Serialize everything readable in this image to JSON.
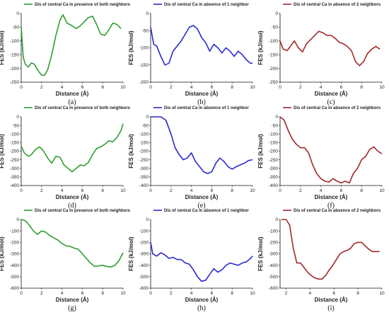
{
  "chart_data": [
    {
      "type": "line",
      "legend": "Dis of central Ca in presence of both neighbors",
      "color": "#2e9e2e",
      "xlabel": "Distance (Å)",
      "ylabel": "FES (kJ/mol)",
      "caption": "(a)",
      "xlim": [
        0,
        10
      ],
      "ylim": [
        -250,
        0
      ],
      "xticks": [
        0,
        2,
        4,
        6,
        8,
        10
      ],
      "yticks": [
        0,
        -50,
        -100,
        -150,
        -200,
        -250
      ],
      "x": [
        0,
        0.2,
        0.4,
        0.7,
        1.0,
        1.3,
        1.6,
        2.0,
        2.3,
        2.6,
        3.0,
        3.4,
        3.8,
        4.1,
        4.5,
        5.0,
        5.4,
        5.8,
        6.2,
        6.6,
        7.0,
        7.4,
        7.8,
        8.2,
        8.6,
        9.0,
        9.4,
        9.8
      ],
      "y": [
        -50,
        -160,
        -185,
        -195,
        -180,
        -185,
        -205,
        -225,
        -225,
        -205,
        -150,
        -80,
        -25,
        -5,
        -35,
        -45,
        -55,
        -45,
        -30,
        -15,
        -10,
        -40,
        -75,
        -80,
        -60,
        -35,
        -40,
        -55
      ]
    },
    {
      "type": "line",
      "legend": "Dis of central Ca in absence of 1 neighbor",
      "color": "#2a2acc",
      "xlabel": "Distance (Å)",
      "ylabel": "FES (kJ/mol)",
      "caption": "(b)",
      "xlim": [
        0,
        10
      ],
      "ylim": [
        -200,
        0
      ],
      "xticks": [
        0,
        2,
        4,
        6,
        8,
        10
      ],
      "yticks": [
        0,
        -50,
        -100,
        -150,
        -200
      ],
      "x": [
        0,
        0.3,
        0.6,
        1.0,
        1.4,
        1.8,
        2.2,
        2.6,
        3.0,
        3.4,
        3.8,
        4.2,
        4.6,
        5.0,
        5.4,
        5.8,
        6.2,
        6.6,
        7.0,
        7.4,
        7.8,
        8.2,
        8.6,
        9.0,
        9.4,
        9.8,
        10.0
      ],
      "y": [
        -40,
        -90,
        -95,
        -125,
        -150,
        -145,
        -110,
        -95,
        -80,
        -60,
        -40,
        -35,
        -45,
        -70,
        -85,
        -110,
        -90,
        -100,
        -115,
        -100,
        -110,
        -125,
        -110,
        -120,
        -135,
        -145,
        -145
      ]
    },
    {
      "type": "line",
      "legend": "Dis of central Ca in absence of 2 neighbors",
      "color": "#a0282a",
      "xlabel": "Distance (Å)",
      "ylabel": "FES (kJ/mol)",
      "caption": "(c)",
      "xlim": [
        0,
        10
      ],
      "ylim": [
        -250,
        0
      ],
      "xticks": [
        0,
        2,
        4,
        6,
        8,
        10
      ],
      "yticks": [
        0,
        -50,
        -100,
        -150,
        -200,
        -250
      ],
      "x": [
        0,
        0.3,
        0.7,
        1.0,
        1.4,
        1.8,
        2.2,
        2.6,
        3.0,
        3.4,
        3.8,
        4.2,
        4.6,
        5.0,
        5.4,
        5.8,
        6.2,
        6.6,
        7.0,
        7.4,
        7.8,
        8.2,
        8.6,
        9.0,
        9.4,
        9.8
      ],
      "y": [
        -100,
        -130,
        -135,
        -120,
        -100,
        -125,
        -140,
        -110,
        -95,
        -80,
        -65,
        -70,
        -80,
        -80,
        -90,
        -105,
        -110,
        -120,
        -135,
        -175,
        -190,
        -175,
        -145,
        -130,
        -120,
        -130
      ]
    },
    {
      "type": "line",
      "legend": "Dis of central Ca in presence of both neighbors",
      "color": "#2e9e2e",
      "xlabel": "Distance (Å)",
      "ylabel": "FES (kJ/mol)",
      "caption": "(d)",
      "xlim": [
        0,
        10
      ],
      "ylim": [
        -400,
        0
      ],
      "xticks": [
        0,
        2,
        4,
        6,
        8,
        10
      ],
      "yticks": [
        0,
        -50,
        -100,
        -150,
        -200,
        -250,
        -300,
        -350,
        -400
      ],
      "x": [
        0,
        0.3,
        0.7,
        1.0,
        1.4,
        1.8,
        2.2,
        2.6,
        3.0,
        3.4,
        3.8,
        4.2,
        4.6,
        5.0,
        5.4,
        5.8,
        6.2,
        6.6,
        7.0,
        7.4,
        7.8,
        8.2,
        8.6,
        9.0,
        9.4,
        9.8,
        10.0
      ],
      "y": [
        -170,
        -210,
        -230,
        -220,
        -190,
        -175,
        -200,
        -240,
        -270,
        -230,
        -235,
        -280,
        -300,
        -320,
        -300,
        -280,
        -285,
        -265,
        -220,
        -185,
        -175,
        -160,
        -140,
        -145,
        -120,
        -80,
        -40
      ]
    },
    {
      "type": "line",
      "legend": "Dis of central Ca in absence of 1 neighbor",
      "color": "#2a2acc",
      "xlabel": "Distance (Å)",
      "ylabel": "FES (kJ/mol)",
      "caption": "(e)",
      "xlim": [
        0,
        10
      ],
      "ylim": [
        -400,
        0
      ],
      "xticks": [
        0,
        2,
        4,
        6,
        8,
        10
      ],
      "yticks": [
        0,
        -50,
        -100,
        -150,
        -200,
        -250,
        -300,
        -350,
        -400
      ],
      "x": [
        0,
        0.5,
        1.0,
        1.5,
        2.0,
        2.4,
        2.8,
        3.2,
        3.6,
        4.0,
        4.4,
        4.8,
        5.2,
        5.6,
        6.0,
        6.4,
        6.8,
        7.2,
        7.6,
        8.0,
        8.4,
        8.8,
        9.2,
        9.6,
        10.0
      ],
      "y": [
        0,
        0,
        0,
        -20,
        -100,
        -180,
        -220,
        -250,
        -240,
        -210,
        -260,
        -290,
        -320,
        -330,
        -320,
        -270,
        -240,
        -260,
        -290,
        -305,
        -290,
        -280,
        -270,
        -255,
        -250
      ]
    },
    {
      "type": "line",
      "legend": "Dis of central Ca in absence of 2 neighbors",
      "color": "#a0282a",
      "xlabel": "Distance (Å)",
      "ylabel": "FES (kJ/mol)",
      "caption": "(f)",
      "xlim": [
        0,
        10
      ],
      "ylim": [
        -400,
        0
      ],
      "xticks": [
        0,
        2,
        4,
        6,
        8,
        10
      ],
      "yticks": [
        0,
        -50,
        -100,
        -150,
        -200,
        -250,
        -300,
        -350,
        -400
      ],
      "x": [
        0,
        0.4,
        0.8,
        1.2,
        1.6,
        2.0,
        2.4,
        2.8,
        3.2,
        3.6,
        4.0,
        4.4,
        4.8,
        5.2,
        5.6,
        6.0,
        6.4,
        6.8,
        7.2,
        7.6,
        8.0,
        8.4,
        8.8,
        9.2,
        9.6,
        10.0
      ],
      "y": [
        0,
        -20,
        -80,
        -130,
        -160,
        -180,
        -180,
        -210,
        -280,
        -330,
        -360,
        -375,
        -380,
        -360,
        -375,
        -385,
        -375,
        -385,
        -330,
        -300,
        -250,
        -230,
        -190,
        -175,
        -200,
        -215
      ]
    },
    {
      "type": "line",
      "legend": "Dis of central Ca in presence of both neighbors",
      "color": "#2e9e2e",
      "xlabel": "Distance (Å)",
      "ylabel": "FES (kJ/mol)",
      "caption": "(g)",
      "xlim": [
        0,
        10
      ],
      "ylim": [
        -600,
        0
      ],
      "xticks": [
        0,
        2,
        4,
        6,
        8,
        10
      ],
      "yticks": [
        0,
        -100,
        -200,
        -300,
        -400,
        -500,
        -600
      ],
      "x": [
        0,
        0.4,
        0.8,
        1.2,
        1.6,
        2.0,
        2.4,
        2.8,
        3.2,
        3.6,
        4.0,
        4.4,
        4.8,
        5.2,
        5.6,
        6.0,
        6.4,
        6.8,
        7.2,
        7.6,
        8.0,
        8.4,
        8.8,
        9.2,
        9.6,
        10.0
      ],
      "y": [
        0,
        -10,
        -50,
        -100,
        -130,
        -100,
        -110,
        -140,
        -160,
        -180,
        -210,
        -230,
        -235,
        -250,
        -260,
        -300,
        -340,
        -380,
        -410,
        -405,
        -400,
        -410,
        -415,
        -400,
        -360,
        -290
      ]
    },
    {
      "type": "line",
      "legend": "Dis of central Ca in absence of 1 neighbor",
      "color": "#2a2acc",
      "xlabel": "Distance (Å)",
      "ylabel": "FES (kJ/mol)",
      "caption": "(h)",
      "xlim": [
        0,
        10
      ],
      "ylim": [
        -600,
        0
      ],
      "xticks": [
        0,
        2,
        4,
        6,
        8,
        10
      ],
      "yticks": [
        0,
        -100,
        -200,
        -300,
        -400,
        -500,
        -600
      ],
      "x": [
        0,
        0.2,
        0.6,
        1.0,
        1.4,
        1.8,
        2.2,
        2.6,
        3.0,
        3.4,
        3.8,
        4.2,
        4.6,
        5.0,
        5.4,
        5.8,
        6.2,
        6.6,
        7.0,
        7.4,
        7.8,
        8.2,
        8.6,
        9.0,
        9.4,
        9.8,
        10.0
      ],
      "y": [
        -200,
        -300,
        -320,
        -290,
        -310,
        -340,
        -330,
        -350,
        -350,
        -380,
        -390,
        -440,
        -500,
        -540,
        -530,
        -480,
        -430,
        -460,
        -440,
        -400,
        -380,
        -390,
        -400,
        -380,
        -370,
        -340,
        -320
      ]
    },
    {
      "type": "line",
      "legend": "Dis of central Ca in absence of 2 neighbors",
      "color": "#a0282a",
      "xlabel": "Distance (Å)",
      "ylabel": "FES (kJ/mol)",
      "caption": "(i)",
      "xlim": [
        1.5,
        10
      ],
      "ylim": [
        -600,
        0
      ],
      "xticks": [
        2,
        4,
        6,
        8,
        10
      ],
      "yticks": [
        0,
        -100,
        -200,
        -300,
        -400,
        -500,
        -600
      ],
      "x": [
        1.6,
        2.0,
        2.3,
        2.6,
        2.9,
        3.2,
        3.5,
        3.8,
        4.1,
        4.4,
        4.7,
        5.0,
        5.3,
        5.6,
        5.9,
        6.2,
        6.5,
        6.8,
        7.1,
        7.4,
        7.7,
        8.0,
        8.3,
        8.6,
        8.9,
        9.2,
        9.5,
        9.8
      ],
      "y": [
        0,
        0,
        -50,
        -250,
        -380,
        -380,
        -420,
        -460,
        -490,
        -510,
        -520,
        -520,
        -490,
        -440,
        -400,
        -350,
        -300,
        -280,
        -270,
        -250,
        -210,
        -200,
        -200,
        -230,
        -260,
        -280,
        -280,
        -280
      ]
    }
  ]
}
